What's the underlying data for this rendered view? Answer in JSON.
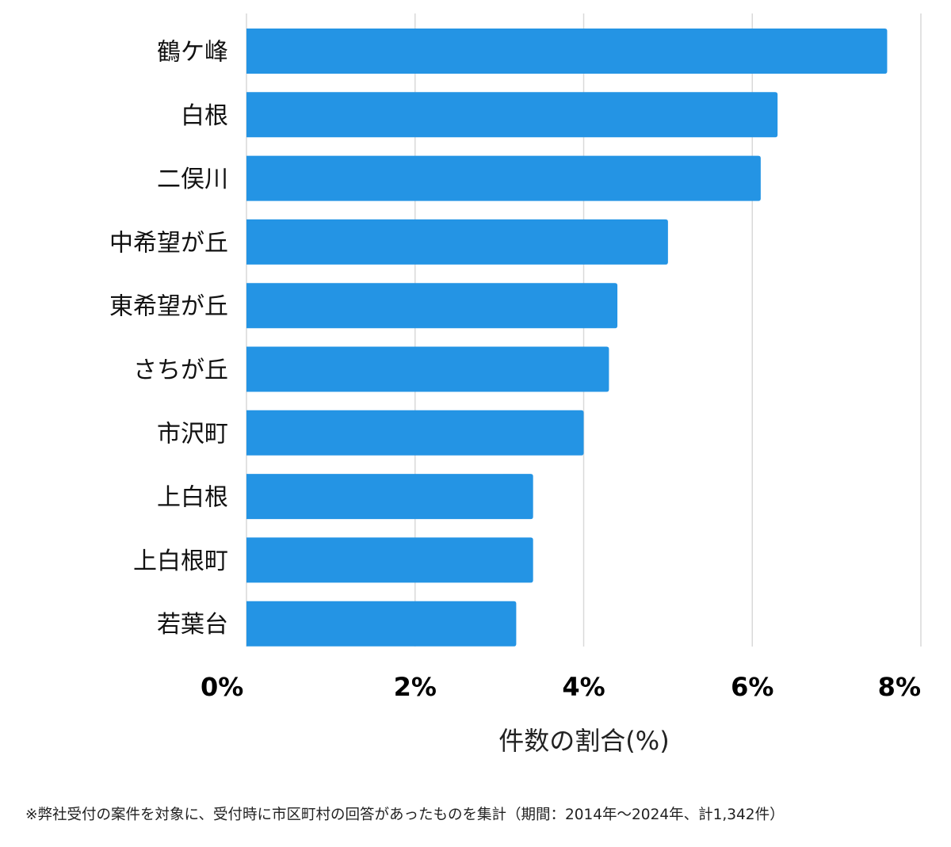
{
  "chart_data": {
    "type": "bar",
    "orientation": "horizontal",
    "categories": [
      "鶴ケ峰",
      "白根",
      "二俣川",
      "中希望が丘",
      "東希望が丘",
      "さちが丘",
      "市沢町",
      "上白根",
      "上白根町",
      "若葉台"
    ],
    "values": [
      7.6,
      6.3,
      6.1,
      5.0,
      4.4,
      4.3,
      4.0,
      3.4,
      3.4,
      3.2
    ],
    "xlabel": "件数の割合(%)",
    "ylabel": "",
    "xlim": [
      0,
      8
    ],
    "x_ticks": [
      0,
      2,
      4,
      6,
      8
    ],
    "x_tick_labels": [
      "0%",
      "2%",
      "4%",
      "6%",
      "8%"
    ],
    "grid": "vertical",
    "bar_color": "#2494e4",
    "grid_color": "#d9d9d9"
  },
  "footnote": "※弊社受付の案件を対象に、受付時に市区町村の回答があったものを集計（期間：2014年〜2024年、計1,342件）"
}
